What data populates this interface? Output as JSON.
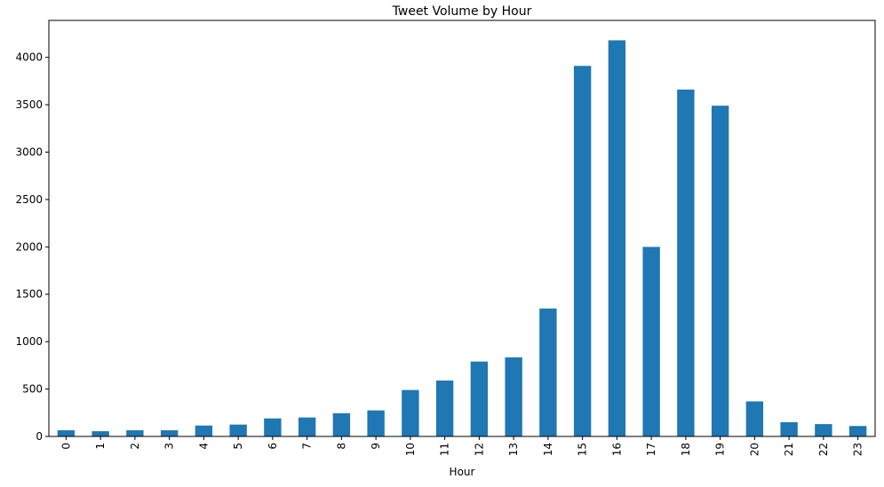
{
  "chart_data": {
    "type": "bar",
    "title": "Tweet Volume by Hour",
    "xlabel": "Hour",
    "ylabel": "",
    "categories": [
      "0",
      "1",
      "2",
      "3",
      "4",
      "5",
      "6",
      "7",
      "8",
      "9",
      "10",
      "11",
      "12",
      "13",
      "14",
      "15",
      "16",
      "17",
      "18",
      "19",
      "20",
      "21",
      "22",
      "23"
    ],
    "values": [
      65,
      55,
      65,
      65,
      115,
      125,
      190,
      200,
      245,
      275,
      490,
      590,
      790,
      835,
      1350,
      3910,
      4180,
      2000,
      3660,
      3490,
      370,
      150,
      130,
      110
    ],
    "ylim": [
      0,
      4390
    ],
    "yticks": [
      0,
      500,
      1000,
      1500,
      2000,
      2500,
      3000,
      3500,
      4000
    ],
    "bar_color": "#1f77b4",
    "grid": false,
    "legend": "none"
  }
}
